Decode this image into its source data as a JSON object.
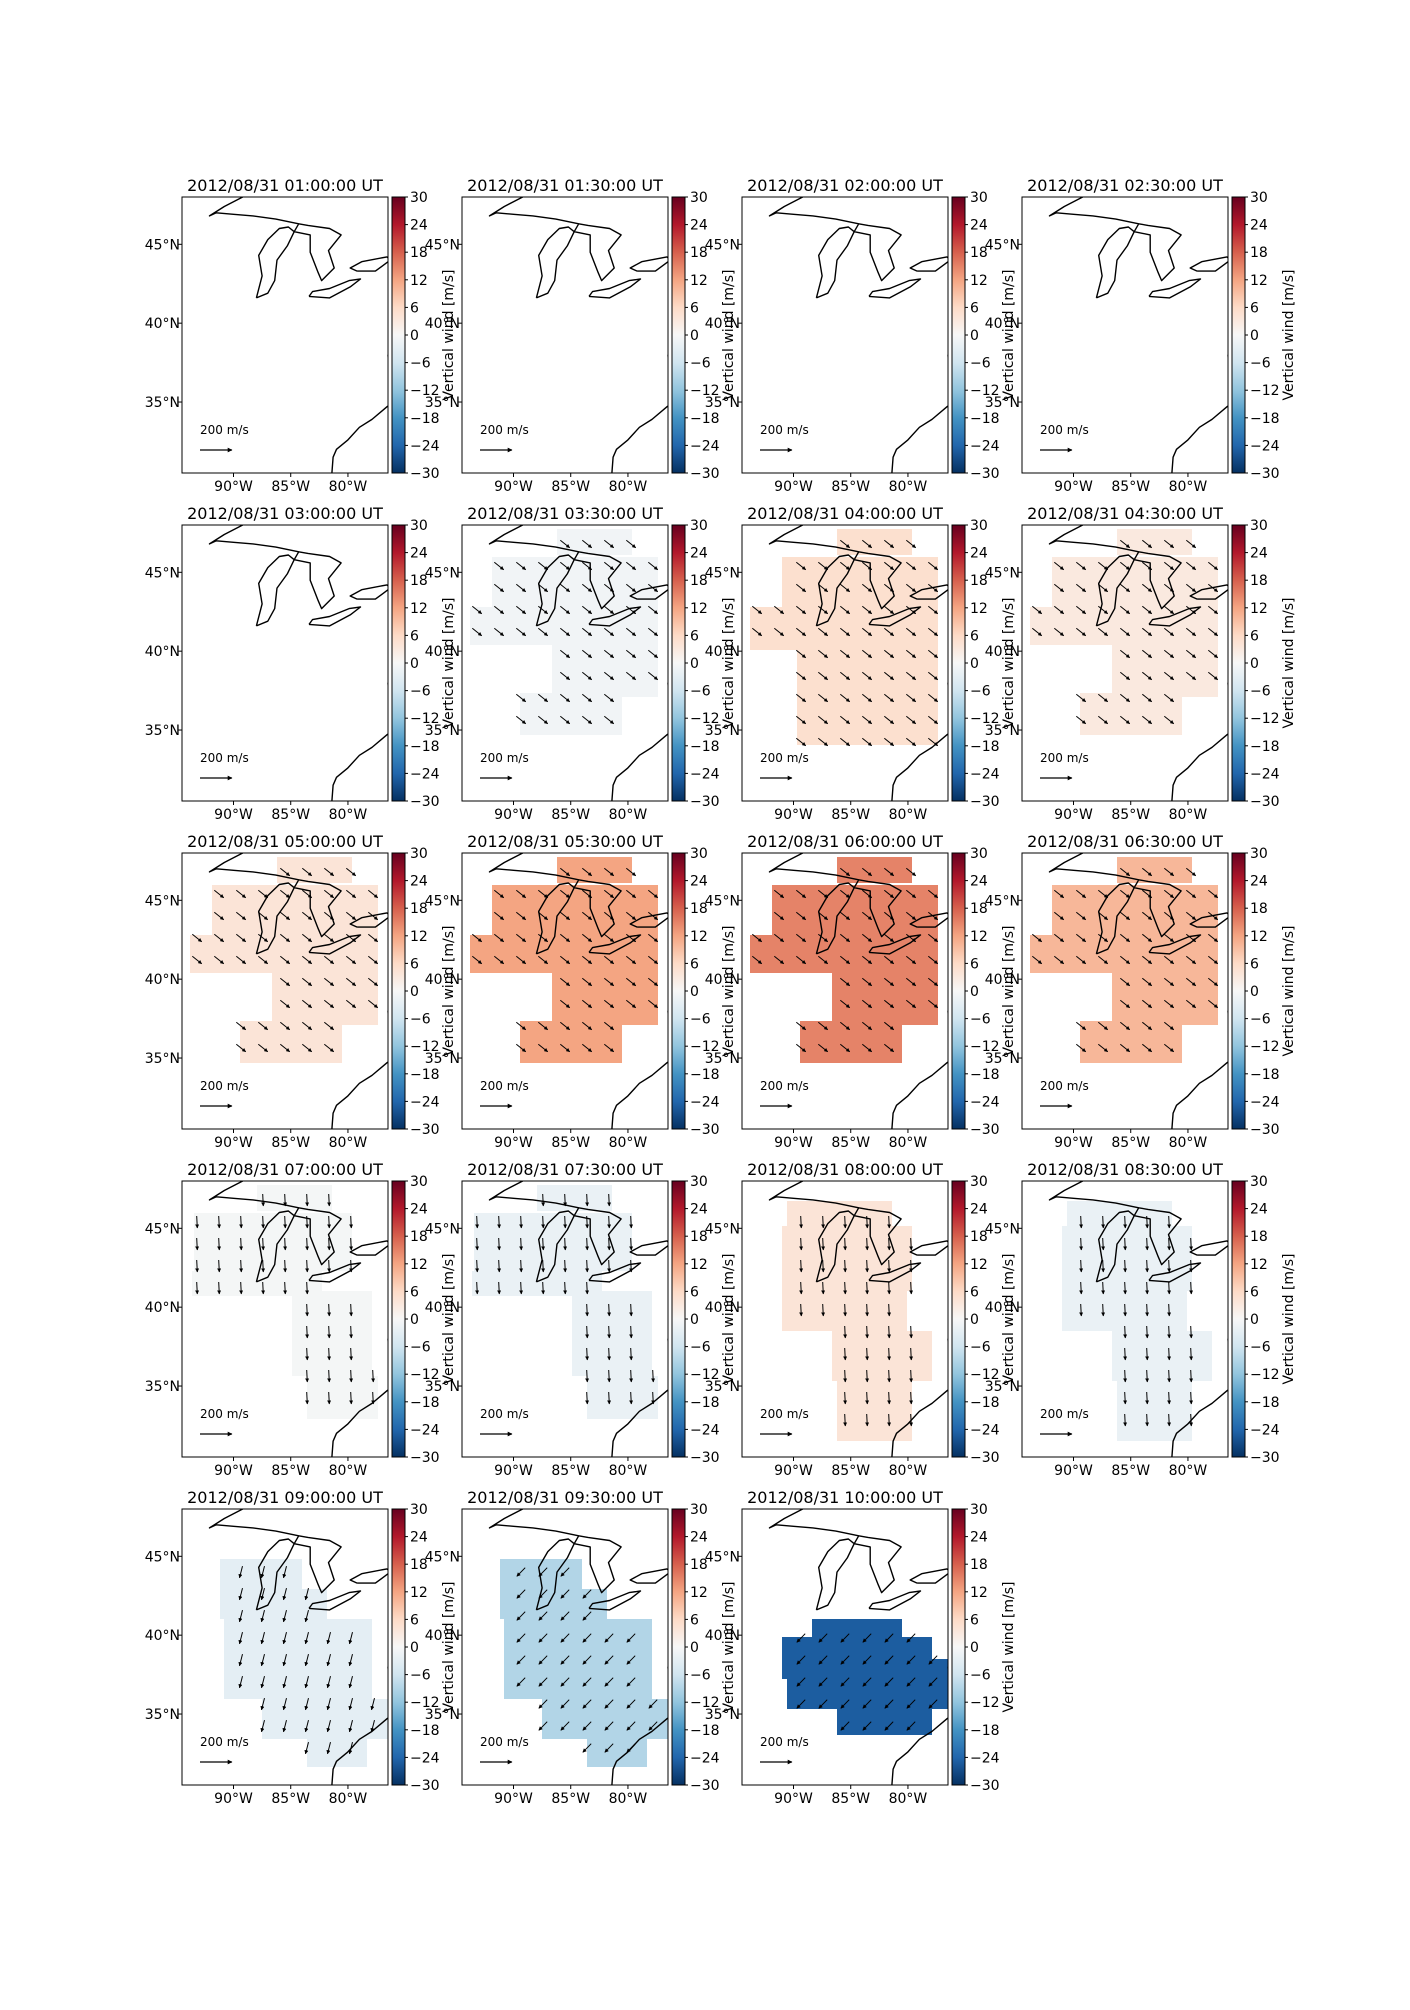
{
  "shared": {
    "lat_ticks": [
      "45°N",
      "40°N",
      "35°N"
    ],
    "lon_ticks": [
      "90°W",
      "85°W",
      "80°W"
    ],
    "colorbar_label": "Vertical wind [m/s]",
    "colorbar_ticks": [
      30,
      24,
      18,
      12,
      6,
      0,
      -6,
      -12,
      -18,
      -24,
      -30
    ],
    "colorbar_range": [
      -30,
      30
    ],
    "colormap": "RdBu_r",
    "reference_arrow": "200 m/s"
  },
  "chart_data": [
    {
      "type": "heatmap",
      "title": "2012/08/31 01:00:00 UT",
      "vertical_wind": null,
      "wind_direction": null,
      "extent": null
    },
    {
      "type": "heatmap",
      "title": "2012/08/31 01:30:00 UT",
      "vertical_wind": null,
      "wind_direction": null,
      "extent": null
    },
    {
      "type": "heatmap",
      "title": "2012/08/31 02:00:00 UT",
      "vertical_wind": null,
      "wind_direction": null,
      "extent": null
    },
    {
      "type": "heatmap",
      "title": "2012/08/31 02:30:00 UT",
      "vertical_wind": null,
      "wind_direction": null,
      "extent": null
    },
    {
      "type": "heatmap",
      "title": "2012/08/31 03:00:00 UT",
      "vertical_wind": null,
      "wind_direction": null,
      "extent": null
    },
    {
      "type": "heatmap",
      "title": "2012/08/31 03:30:00 UT",
      "vertical_wind": -1,
      "wind_direction": "southeast",
      "extent": "two-lobe"
    },
    {
      "type": "heatmap",
      "title": "2012/08/31 04:00:00 UT",
      "vertical_wind": 5,
      "wind_direction": "southeast",
      "extent": "wide"
    },
    {
      "type": "heatmap",
      "title": "2012/08/31 04:30:00 UT",
      "vertical_wind": 3,
      "wind_direction": "southeast",
      "extent": "two-lobe"
    },
    {
      "type": "heatmap",
      "title": "2012/08/31 05:00:00 UT",
      "vertical_wind": 4,
      "wind_direction": "southeast",
      "extent": "two-lobe"
    },
    {
      "type": "heatmap",
      "title": "2012/08/31 05:30:00 UT",
      "vertical_wind": 12,
      "wind_direction": "southeast",
      "extent": "two-lobe"
    },
    {
      "type": "heatmap",
      "title": "2012/08/31 06:00:00 UT",
      "vertical_wind": 15,
      "wind_direction": "southeast",
      "extent": "two-lobe"
    },
    {
      "type": "heatmap",
      "title": "2012/08/31 06:30:00 UT",
      "vertical_wind": 10,
      "wind_direction": "southeast",
      "extent": "two-lobe"
    },
    {
      "type": "heatmap",
      "title": "2012/08/31 07:00:00 UT",
      "vertical_wind": -0.5,
      "wind_direction": "south",
      "extent": "diagonal"
    },
    {
      "type": "heatmap",
      "title": "2012/08/31 07:30:00 UT",
      "vertical_wind": -2,
      "wind_direction": "south",
      "extent": "diagonal"
    },
    {
      "type": "heatmap",
      "title": "2012/08/31 08:00:00 UT",
      "vertical_wind": 4,
      "wind_direction": "south",
      "extent": "narrow"
    },
    {
      "type": "heatmap",
      "title": "2012/08/31 08:30:00 UT",
      "vertical_wind": -2,
      "wind_direction": "south",
      "extent": "narrow"
    },
    {
      "type": "heatmap",
      "title": "2012/08/31 09:00:00 UT",
      "vertical_wind": -3,
      "wind_direction": "south-southwest",
      "extent": "south"
    },
    {
      "type": "heatmap",
      "title": "2012/08/31 09:30:00 UT",
      "vertical_wind": -9,
      "wind_direction": "southwest",
      "extent": "south"
    },
    {
      "type": "heatmap",
      "title": "2012/08/31 10:00:00 UT",
      "vertical_wind": -25,
      "wind_direction": "southwest",
      "extent": "central"
    }
  ]
}
